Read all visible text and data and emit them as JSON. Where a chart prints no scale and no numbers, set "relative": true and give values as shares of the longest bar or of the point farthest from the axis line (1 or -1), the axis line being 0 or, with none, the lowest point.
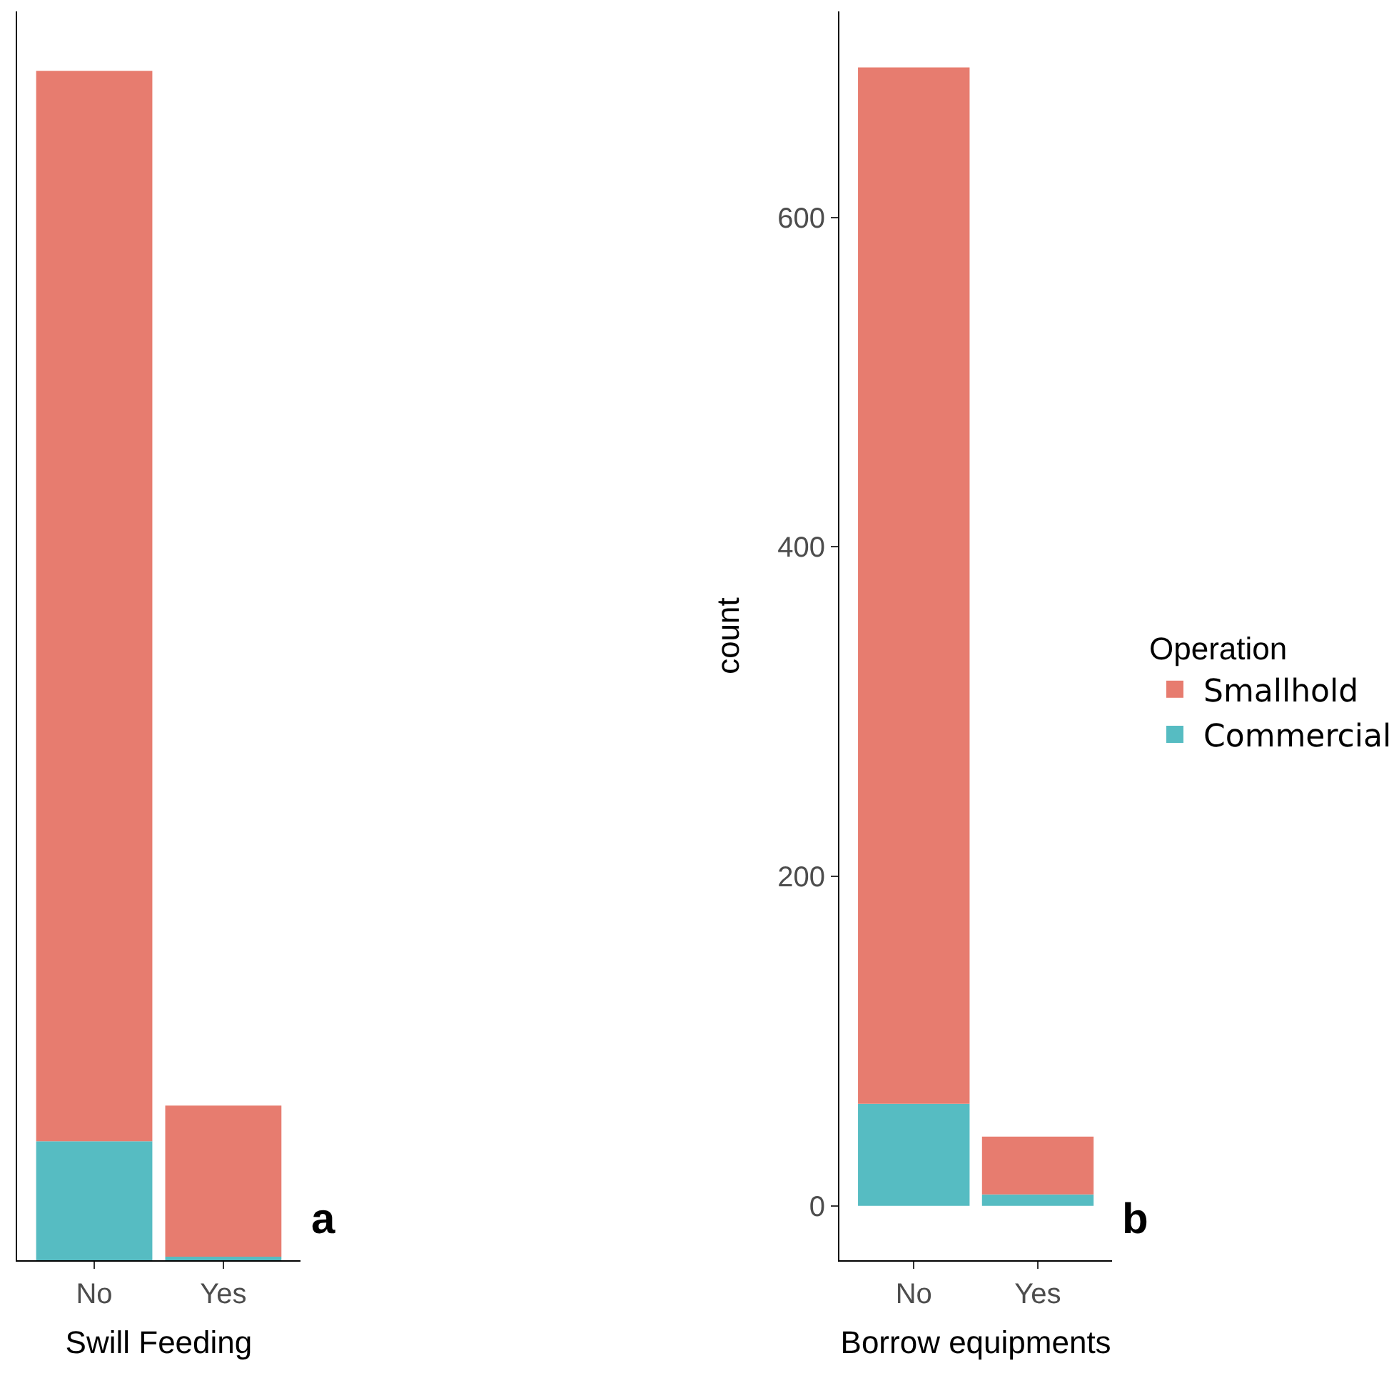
{
  "chart_data": [
    {
      "type": "bar",
      "stacked": true,
      "relative": true,
      "categories": [
        "No",
        "Yes"
      ],
      "xlabel": "Swill Feeding",
      "annotations": [
        "a"
      ],
      "series": [
        {
          "color": "#56bcc2",
          "values": [
            0.1,
            0.003
          ]
        },
        {
          "color": "#e77c6f",
          "values": [
            0.9,
            0.127
          ]
        }
      ]
    },
    {
      "type": "bar",
      "stacked": true,
      "categories": [
        "No",
        "Yes"
      ],
      "xlabel": "Borrow equipments",
      "ylabel": "count",
      "legend_title": "Operation",
      "legend": "right",
      "ylim": [
        -33,
        725
      ],
      "yticks": [
        0,
        200,
        400,
        600
      ],
      "annotations": [
        "b"
      ],
      "series": [
        {
          "name": "Commercial",
          "color": "#56bcc2",
          "values": [
            62,
            7
          ]
        },
        {
          "name": "Smallhold",
          "color": "#e77c6f",
          "values": [
            629,
            35
          ]
        }
      ]
    }
  ]
}
